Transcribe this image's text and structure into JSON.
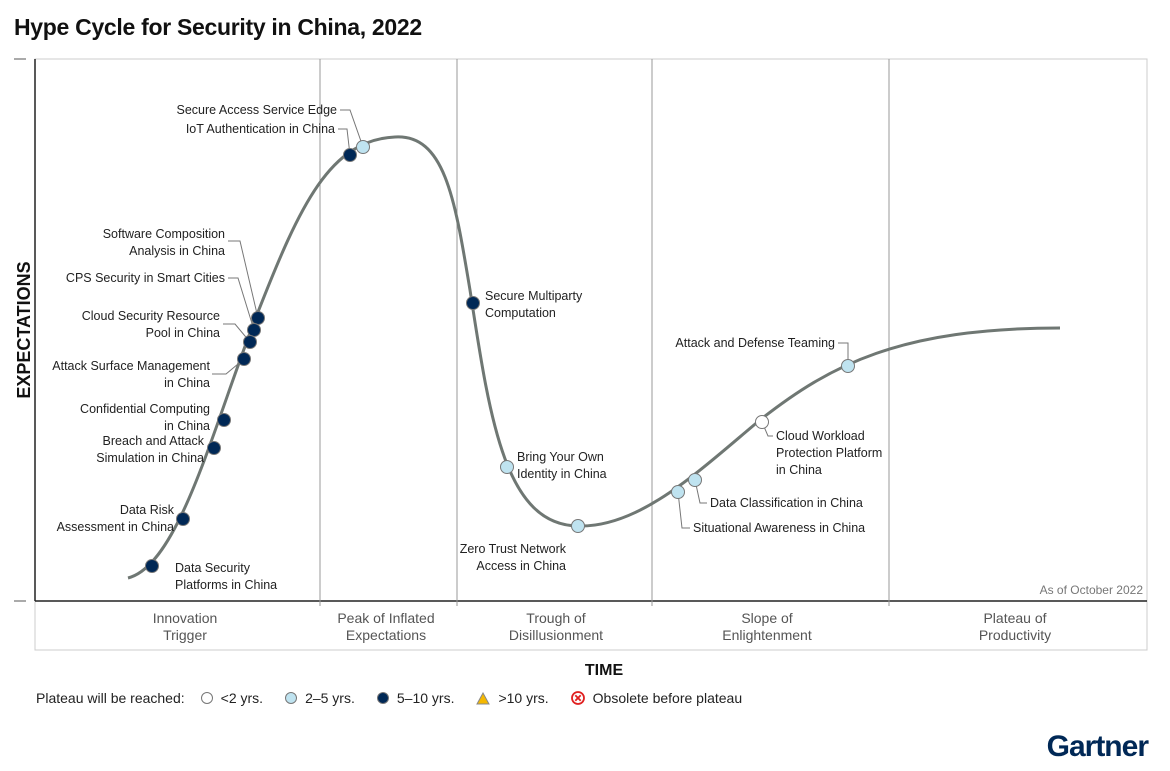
{
  "title": "Hype Cycle for Security in China, 2022",
  "axes": {
    "y_label": "EXPECTATIONS",
    "x_label": "TIME"
  },
  "as_of": "As of October 2022",
  "phases": [
    {
      "lines": [
        "Innovation",
        "Trigger"
      ]
    },
    {
      "lines": [
        "Peak of Inflated",
        "Expectations"
      ]
    },
    {
      "lines": [
        "Trough of",
        "Disillusionment"
      ]
    },
    {
      "lines": [
        "Slope of",
        "Enlightenment"
      ]
    },
    {
      "lines": [
        "Plateau of",
        "Productivity"
      ]
    }
  ],
  "colors": {
    "lt2": "#ffffff",
    "2to5": "#bfe3f0",
    "5to10": "#002856",
    "gt10": "#f5b800",
    "obsolete": "#e02020",
    "curve": "#6f7773",
    "brand": "#002856"
  },
  "items": [
    {
      "lines": [
        "Secure Access Service Edge"
      ],
      "category": "2to5"
    },
    {
      "lines": [
        "IoT Authentication in China"
      ],
      "category": "5to10"
    },
    {
      "lines": [
        "Software Composition",
        "Analysis in China"
      ],
      "category": "5to10"
    },
    {
      "lines": [
        "CPS Security in Smart Cities"
      ],
      "category": "5to10"
    },
    {
      "lines": [
        "Cloud Security Resource",
        "Pool in China"
      ],
      "category": "5to10"
    },
    {
      "lines": [
        "Attack Surface Management",
        "in China"
      ],
      "category": "5to10"
    },
    {
      "lines": [
        "Confidential Computing",
        "in China"
      ],
      "category": "5to10"
    },
    {
      "lines": [
        "Breach and Attack",
        "Simulation in China"
      ],
      "category": "5to10"
    },
    {
      "lines": [
        "Data Risk",
        "Assessment in China"
      ],
      "category": "5to10"
    },
    {
      "lines": [
        "Data Security",
        "Platforms in China"
      ],
      "category": "5to10"
    },
    {
      "lines": [
        "Secure Multiparty",
        "Computation"
      ],
      "category": "5to10"
    },
    {
      "lines": [
        "Bring Your Own",
        "Identity in China"
      ],
      "category": "2to5"
    },
    {
      "lines": [
        "Zero Trust Network",
        "Access in China"
      ],
      "category": "2to5"
    },
    {
      "lines": [
        "Data Classification in China"
      ],
      "category": "2to5"
    },
    {
      "lines": [
        "Situational Awareness in China"
      ],
      "category": "2to5"
    },
    {
      "lines": [
        "Cloud Workload",
        "Protection Platform",
        "in China"
      ],
      "category": "lt2"
    },
    {
      "lines": [
        "Attack and Defense Teaming"
      ],
      "category": "2to5"
    }
  ],
  "legend": {
    "title": "Plateau will be reached:",
    "entries": [
      {
        "label": "<2 yrs.",
        "category": "lt2"
      },
      {
        "label": "2–5 yrs.",
        "category": "2to5"
      },
      {
        "label": "5–10 yrs.",
        "category": "5to10"
      },
      {
        "label": ">10 yrs.",
        "category": "gt10"
      },
      {
        "label": "Obsolete before plateau",
        "category": "obsolete"
      }
    ]
  },
  "brand": "Gartner"
}
